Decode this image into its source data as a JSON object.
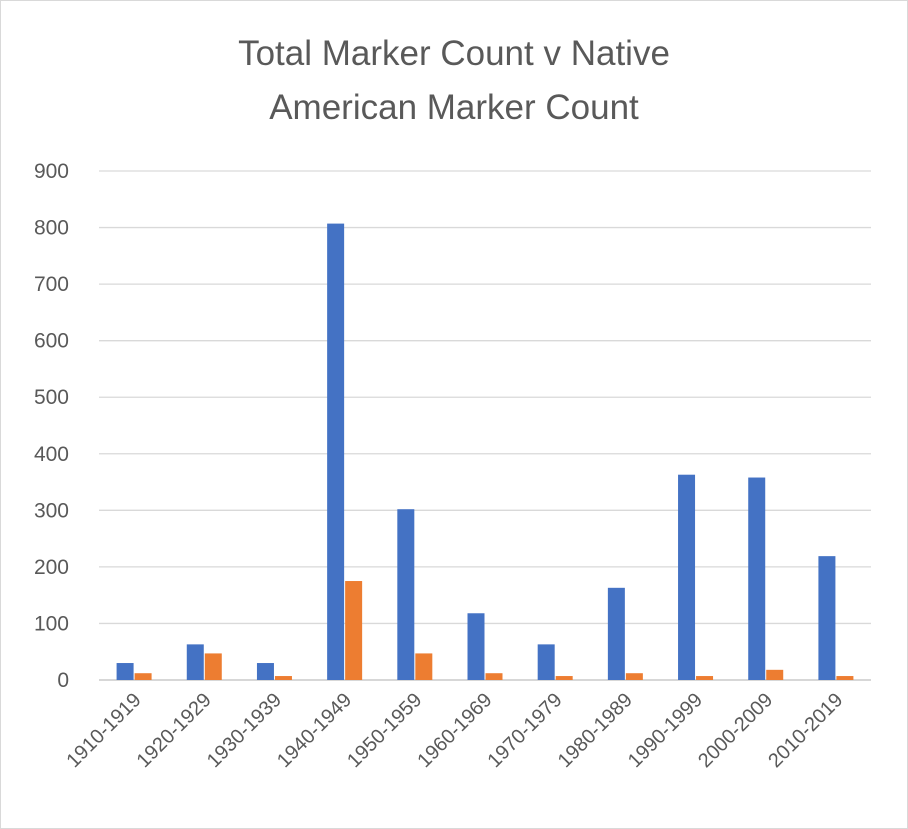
{
  "chart_data": {
    "type": "bar",
    "title_lines": [
      "Total Marker Count v Native",
      "American Marker Count"
    ],
    "categories": [
      "1910-1919",
      "1920-1929",
      "1930-1939",
      "1940-1949",
      "1950-1959",
      "1960-1969",
      "1970-1979",
      "1980-1989",
      "1990-1999",
      "2000-2009",
      "2010-2019"
    ],
    "series": [
      {
        "color": "#4472C4",
        "values": [
          30,
          63,
          30,
          807,
          302,
          118,
          63,
          163,
          363,
          358,
          219
        ]
      },
      {
        "color": "#ED7D31",
        "values": [
          12,
          47,
          7,
          175,
          47,
          12,
          7,
          12,
          7,
          18,
          7
        ]
      }
    ],
    "y_ticks": [
      "0",
      "100",
      "200",
      "300",
      "400",
      "500",
      "600",
      "700",
      "800",
      "900"
    ],
    "ylim": [
      0,
      900
    ],
    "grid": true,
    "legend": "none"
  }
}
